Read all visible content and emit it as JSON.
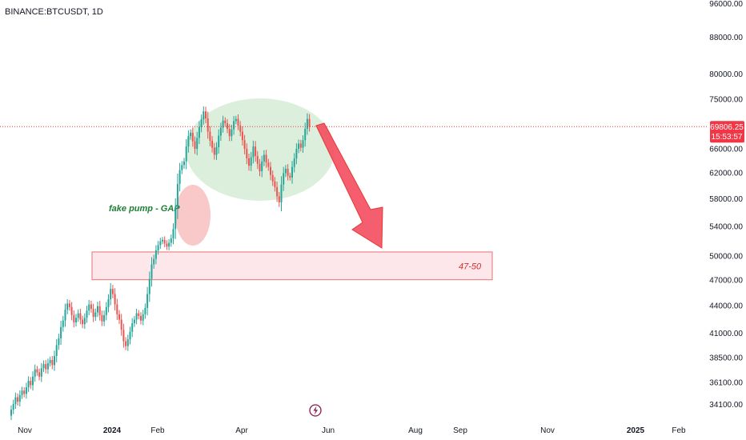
{
  "header": {
    "symbol": "BINANCE:BTCUSDT, 1D"
  },
  "colors": {
    "up": "#26a69a",
    "down": "#ef5350",
    "price_line": "#f23645",
    "zone_fill": "#fde3e6",
    "zone_border": "#e57373",
    "ellipse_fill": "#c8e6c9",
    "gap_fill": "#f8bbbb",
    "arrow": "#f44d5e",
    "annotation_green": "#1e7e34"
  },
  "price_tag": {
    "value": "69806.25",
    "countdown": "15:53:57"
  },
  "annotations": {
    "gap_label": "fake pump - GAP",
    "zone_label": "47-50"
  },
  "chart_data": {
    "type": "candlestick",
    "title": "",
    "xlabel": "",
    "ylabel": "",
    "y_axis": {
      "scale": "log",
      "ticks": [
        "96000.00",
        "88000.00",
        "80000.00",
        "75000.00",
        "66000.00",
        "62000.00",
        "58000.00",
        "54000.00",
        "50000.00",
        "47000.00",
        "44000.00",
        "41000.00",
        "38500.00",
        "36100.00",
        "34100.00"
      ],
      "tick_values": [
        96000,
        88000,
        80000,
        75000,
        66000,
        62000,
        58000,
        54000,
        50000,
        47000,
        44000,
        41000,
        38500,
        36100,
        34100
      ]
    },
    "x_axis": {
      "ticks": [
        {
          "label": "Nov",
          "bold": false
        },
        {
          "label": "2024",
          "bold": true
        },
        {
          "label": "Feb",
          "bold": false
        },
        {
          "label": "Apr",
          "bold": false
        },
        {
          "label": "Jun",
          "bold": false
        },
        {
          "label": "Aug",
          "bold": false
        },
        {
          "label": "Sep",
          "bold": false
        },
        {
          "label": "Nov",
          "bold": false
        },
        {
          "label": "2025",
          "bold": true
        },
        {
          "label": "Feb",
          "bold": false
        }
      ]
    },
    "last_price": 69806.25,
    "support_zone": {
      "low": 47000,
      "high": 50500,
      "label": "47-50"
    },
    "closes": [
      33600,
      34100,
      34700,
      34300,
      34900,
      35300,
      35000,
      35600,
      36200,
      35800,
      36600,
      37300,
      37000,
      36600,
      37400,
      37800,
      37300,
      37900,
      38200,
      37700,
      38600,
      39700,
      40400,
      41600,
      42300,
      43500,
      44200,
      43800,
      42900,
      42100,
      42600,
      43100,
      42400,
      41900,
      42600,
      43400,
      44100,
      43600,
      42700,
      43200,
      43900,
      42900,
      42200,
      42900,
      43800,
      44700,
      45900,
      45300,
      44100,
      43000,
      42400,
      41300,
      40100,
      39600,
      40300,
      41100,
      42000,
      42400,
      43100,
      42800,
      42300,
      43000,
      43700,
      45300,
      47100,
      48900,
      49600,
      50700,
      51400,
      51900,
      52100,
      51600,
      51200,
      51700,
      52300,
      53600,
      56600,
      60200,
      62400,
      63200,
      63800,
      66300,
      68100,
      68700,
      67200,
      65900,
      67800,
      69700,
      71100,
      72600,
      71300,
      68900,
      67300,
      66100,
      64900,
      66200,
      68200,
      69600,
      70900,
      70400,
      69400,
      68100,
      69300,
      70800,
      71200,
      70000,
      68900,
      67400,
      65900,
      64300,
      63100,
      64500,
      66300,
      64700,
      63400,
      62200,
      63800,
      64900,
      63600,
      62900,
      61600,
      60600,
      59700,
      58300,
      57400,
      60100,
      61900,
      62600,
      61500,
      61200,
      62900,
      64300,
      65900,
      66800,
      66100,
      67400,
      69400,
      71200,
      69806
    ]
  }
}
